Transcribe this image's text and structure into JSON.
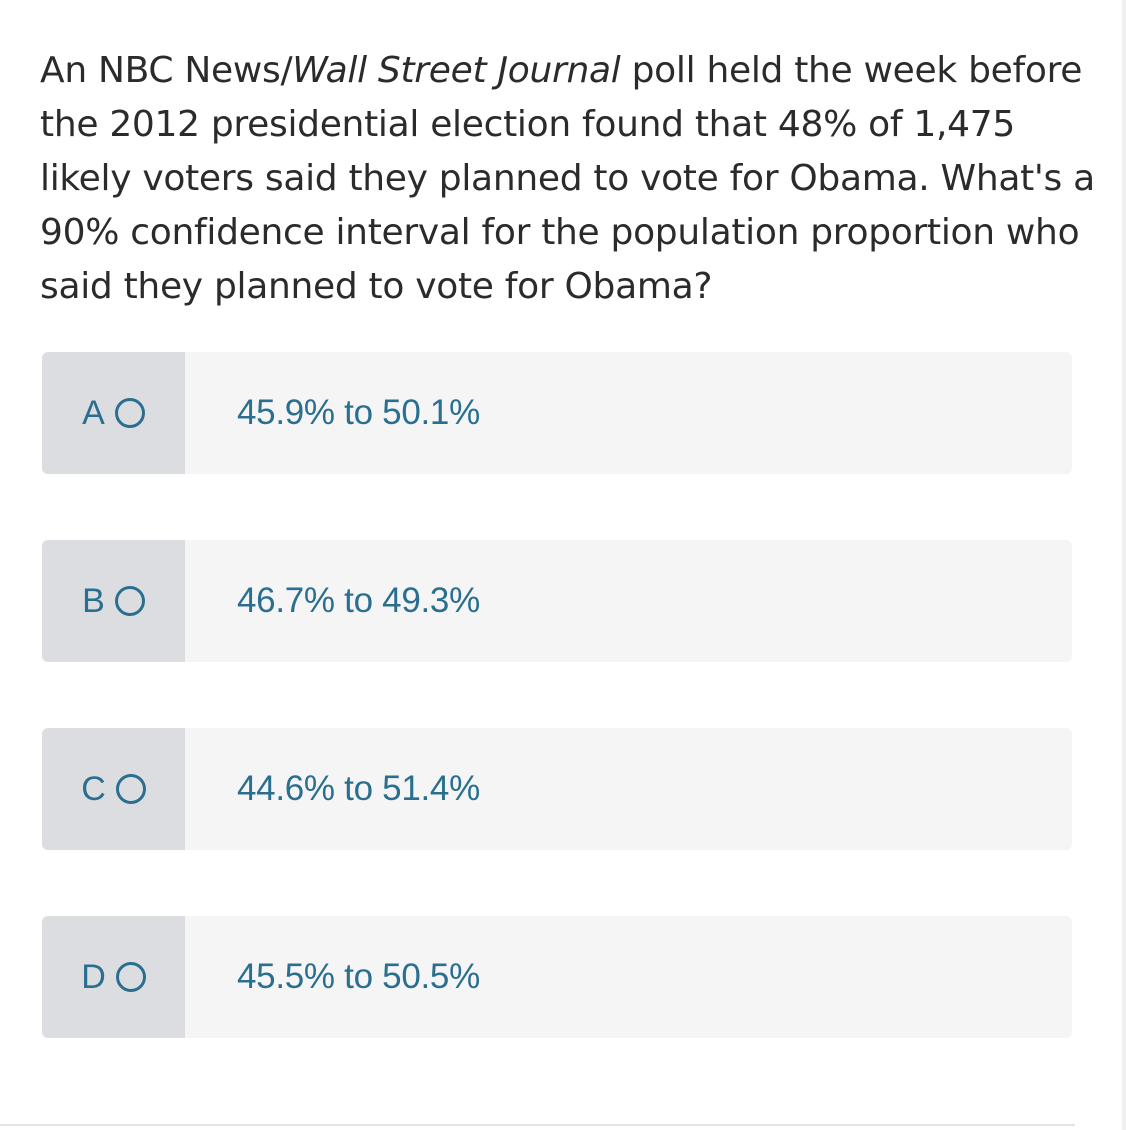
{
  "question": {
    "part1": "An NBC News/",
    "part_italic": "Wall Street Journal",
    "part2": " poll held the week before the 2012 presidential election found that 48% of 1,475 likely voters said they planned to vote for Obama. What's a 90% confidence interval for the population proportion who said they planned to vote for Obama?"
  },
  "options": [
    {
      "letter": "A",
      "text": "45.9% to 50.1%"
    },
    {
      "letter": "B",
      "text": "46.7% to 49.3%"
    },
    {
      "letter": "C",
      "text": "44.6% to 51.4%"
    },
    {
      "letter": "D",
      "text": "45.5% to 50.5%"
    }
  ],
  "colors": {
    "accent": "#2a6f8f",
    "option_bg": "#f5f5f6",
    "key_bg": "#dcdde0",
    "text": "#2b2b2b"
  }
}
